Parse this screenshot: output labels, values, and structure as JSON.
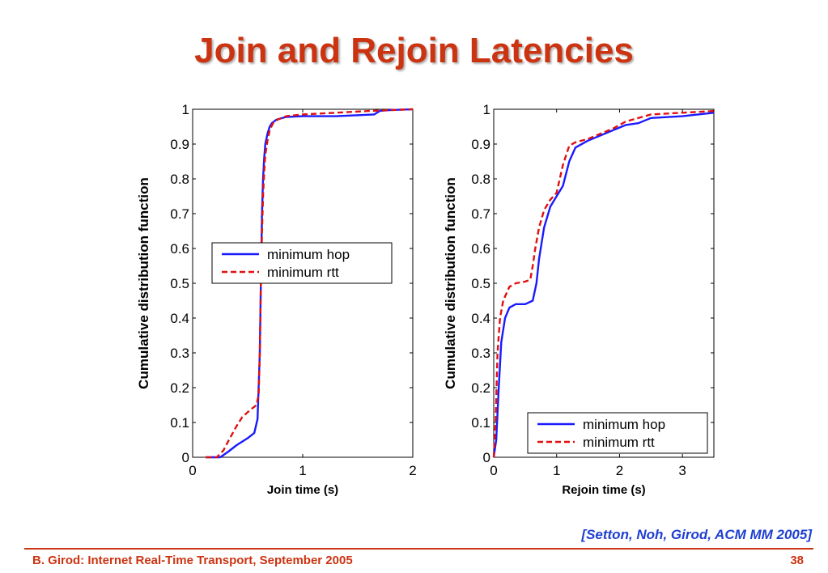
{
  "slide": {
    "title": "Join and Rejoin Latencies",
    "citation": "[Setton, Noh, Girod, ACM MM 2005]",
    "footer": "B. Girod: Internet Real-Time Transport, September 2005",
    "page_number": "38"
  },
  "colors": {
    "title": "#cc3311",
    "citation": "#1f3fd0",
    "minimum_hop": "#1a1aff",
    "minimum_rtt": "#e01010"
  },
  "chart_data": [
    {
      "type": "line",
      "title": "",
      "xlabel": "Join time (s)",
      "ylabel": "Cumulative distribution function",
      "xlim": [
        0,
        2
      ],
      "ylim": [
        0,
        1
      ],
      "xticks": [
        "0",
        "1",
        "2"
      ],
      "yticks": [
        "0",
        "0.1",
        "0.2",
        "0.3",
        "0.4",
        "0.5",
        "0.6",
        "0.7",
        "0.8",
        "0.9",
        "1"
      ],
      "legend_position": "center-right",
      "series": [
        {
          "name": "minimum hop",
          "style": "solid",
          "color": "#1a1aff",
          "x": [
            0.12,
            0.25,
            0.32,
            0.4,
            0.5,
            0.56,
            0.59,
            0.61,
            0.62,
            0.63,
            0.64,
            0.65,
            0.66,
            0.68,
            0.7,
            0.72,
            0.76,
            0.85,
            1.0,
            1.3,
            1.65,
            1.7,
            1.8,
            2.0
          ],
          "y": [
            0.0,
            0.0,
            0.015,
            0.035,
            0.055,
            0.07,
            0.11,
            0.3,
            0.5,
            0.7,
            0.8,
            0.86,
            0.9,
            0.93,
            0.95,
            0.96,
            0.97,
            0.978,
            0.98,
            0.98,
            0.985,
            0.995,
            0.998,
            1.0
          ]
        },
        {
          "name": "minimum rtt",
          "style": "dashed",
          "color": "#e01010",
          "x": [
            0.12,
            0.22,
            0.28,
            0.33,
            0.4,
            0.45,
            0.52,
            0.58,
            0.6,
            0.61,
            0.62,
            0.63,
            0.64,
            0.65,
            0.66,
            0.68,
            0.7,
            0.73,
            0.77,
            0.85,
            1.0,
            1.3,
            1.6,
            2.0
          ],
          "y": [
            0.0,
            0.0,
            0.02,
            0.05,
            0.09,
            0.115,
            0.135,
            0.15,
            0.18,
            0.3,
            0.5,
            0.65,
            0.75,
            0.82,
            0.87,
            0.91,
            0.94,
            0.96,
            0.97,
            0.98,
            0.985,
            0.99,
            0.995,
            1.0
          ]
        }
      ]
    },
    {
      "type": "line",
      "title": "",
      "xlabel": "Rejoin time (s)",
      "ylabel": "Cumulative distribution function",
      "xlim": [
        0,
        3.5
      ],
      "ylim": [
        0,
        1
      ],
      "xticks": [
        "0",
        "1",
        "2",
        "3"
      ],
      "yticks": [
        "0",
        "0.1",
        "0.2",
        "0.3",
        "0.4",
        "0.5",
        "0.6",
        "0.7",
        "0.8",
        "0.9",
        "1"
      ],
      "legend_position": "bottom-right",
      "series": [
        {
          "name": "minimum hop",
          "style": "solid",
          "color": "#1a1aff",
          "x": [
            0.0,
            0.04,
            0.08,
            0.12,
            0.18,
            0.25,
            0.35,
            0.5,
            0.62,
            0.68,
            0.72,
            0.8,
            0.9,
            1.0,
            1.1,
            1.2,
            1.3,
            1.5,
            1.7,
            1.9,
            2.1,
            2.3,
            2.5,
            3.0,
            3.5
          ],
          "y": [
            0.0,
            0.05,
            0.2,
            0.33,
            0.4,
            0.43,
            0.44,
            0.44,
            0.45,
            0.5,
            0.57,
            0.66,
            0.72,
            0.75,
            0.78,
            0.85,
            0.89,
            0.91,
            0.925,
            0.94,
            0.955,
            0.96,
            0.975,
            0.98,
            0.99
          ]
        },
        {
          "name": "minimum rtt",
          "style": "dashed",
          "color": "#e01010",
          "x": [
            0.0,
            0.03,
            0.06,
            0.1,
            0.15,
            0.25,
            0.35,
            0.5,
            0.58,
            0.62,
            0.66,
            0.72,
            0.8,
            0.9,
            1.0,
            1.1,
            1.2,
            1.3,
            1.5,
            1.7,
            1.9,
            2.1,
            2.3,
            2.5,
            3.0,
            3.5
          ],
          "y": [
            0.0,
            0.1,
            0.3,
            0.4,
            0.45,
            0.49,
            0.5,
            0.505,
            0.51,
            0.55,
            0.6,
            0.66,
            0.71,
            0.74,
            0.76,
            0.84,
            0.895,
            0.905,
            0.915,
            0.93,
            0.945,
            0.965,
            0.975,
            0.985,
            0.99,
            0.995
          ]
        }
      ]
    }
  ]
}
